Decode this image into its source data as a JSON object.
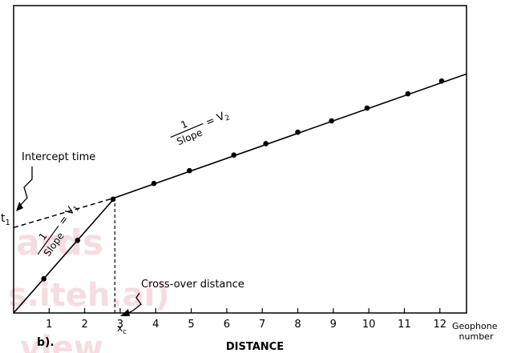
{
  "chart_data": {
    "type": "line",
    "title": "",
    "xlabel": "DISTANCE",
    "x_axis_end_label": [
      "Geophone",
      "number"
    ],
    "ylabel": "",
    "xlim": [
      0,
      12.75
    ],
    "ylim": [
      0,
      10.8
    ],
    "x_ticks": [
      1,
      2,
      3,
      4,
      5,
      6,
      7,
      8,
      9,
      10,
      11,
      12
    ],
    "x_tick_labels": [
      "1",
      "2",
      "3",
      "4",
      "5",
      "6",
      "7",
      "8",
      "9",
      "10",
      "11",
      "12"
    ],
    "crossover_x": 2.85,
    "intercept_time": 3.0,
    "series": [
      {
        "role": "direct",
        "line": [
          [
            0,
            0
          ],
          [
            2.85,
            4.05
          ]
        ],
        "points": [
          [
            0.85,
            1.2
          ],
          [
            1.8,
            2.55
          ],
          [
            2.8,
            4.0
          ]
        ]
      },
      {
        "role": "refracted",
        "line": [
          [
            2.85,
            4.05
          ],
          [
            12.75,
            8.4
          ]
        ],
        "points": [
          [
            3.95,
            4.55
          ],
          [
            4.95,
            5.0
          ],
          [
            6.2,
            5.55
          ],
          [
            7.1,
            5.95
          ],
          [
            8.0,
            6.35
          ],
          [
            8.95,
            6.75
          ],
          [
            9.95,
            7.2
          ],
          [
            11.1,
            7.7
          ],
          [
            12.05,
            8.15
          ]
        ]
      }
    ],
    "extrapolation": [
      [
        0,
        3.0
      ],
      [
        2.85,
        4.05
      ]
    ],
    "annotations": {
      "intercept_label": "Intercept time",
      "t1_symbol": "t",
      "t1_subscript": "1",
      "crossover_label": "Cross-over distance",
      "xc_symbol": "x",
      "xc_subscript": "c",
      "v1_numerator": "1",
      "v1_denominator": "Slope",
      "v1_equals": "= V",
      "v1_subscript": "1",
      "v2_numerator": "1",
      "v2_denominator": "Slope",
      "v2_equals": "= V",
      "v2_subscript": "2"
    },
    "panel_label": "b).",
    "grid": false,
    "legend": "none"
  }
}
